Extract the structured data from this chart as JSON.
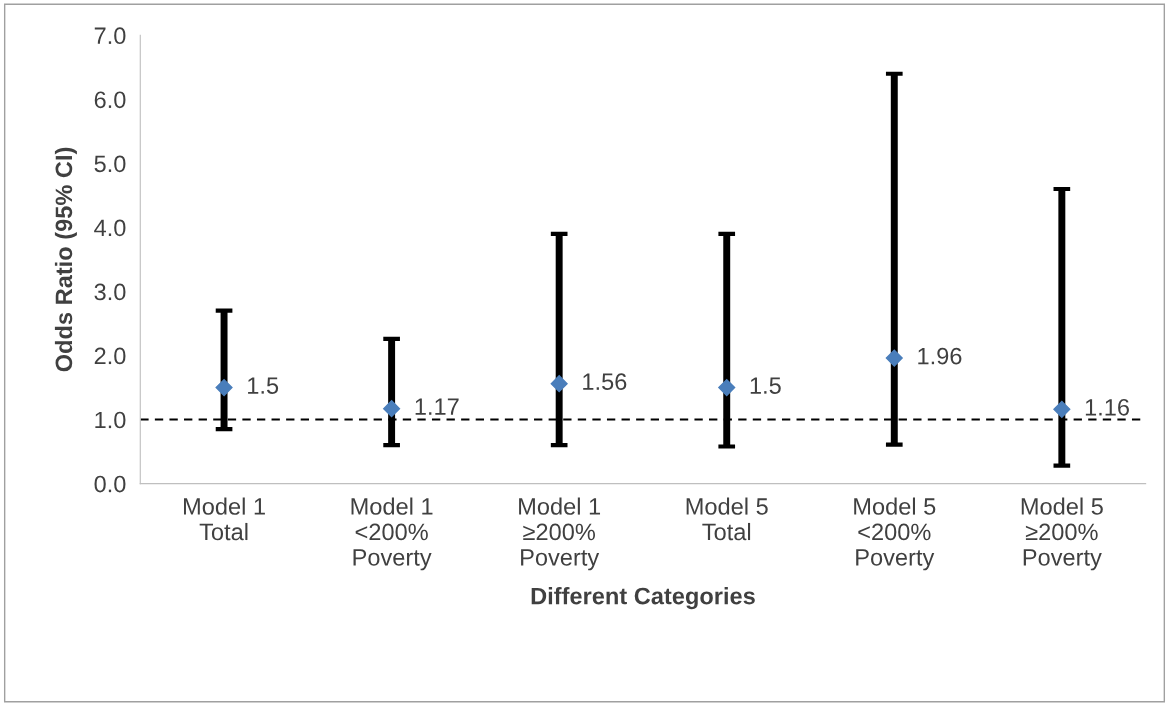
{
  "chart_data": {
    "type": "scatter",
    "xlabel": "Different Categories",
    "ylabel": "Odds Ratio (95% CI)",
    "categories": [
      "Model 1\nTotal",
      "Model 1\n<200%\nPoverty",
      "Model 1\n≥200%\nPoverty",
      "Model 5\nTotal",
      "Model 5\n<200%\nPoverty",
      "Model 5\n≥200%\nPoverty"
    ],
    "series": [
      {
        "color": "#4a7ebb",
        "values": [
          1.5,
          1.17,
          1.56,
          1.5,
          1.96,
          1.16
        ],
        "errors": [
          [
            0.85,
            2.7
          ],
          [
            0.6,
            2.26
          ],
          [
            0.6,
            3.9
          ],
          [
            0.58,
            3.9
          ],
          [
            0.61,
            6.4
          ],
          [
            0.28,
            4.6
          ]
        ]
      }
    ],
    "data_labels": true,
    "marker": "diamond",
    "ylim": [
      0,
      7
    ],
    "yticks": [
      {
        "value": 0,
        "label": "0.0"
      },
      {
        "value": 1,
        "label": "1.0"
      },
      {
        "value": 2,
        "label": "2.0"
      },
      {
        "value": 3,
        "label": "3.0"
      },
      {
        "value": 4,
        "label": "4.0"
      },
      {
        "value": 5,
        "label": "5.0"
      },
      {
        "value": 6,
        "label": "6.0"
      },
      {
        "value": 7,
        "label": "7.0"
      }
    ],
    "ref_lines": [
      {
        "axis": "y",
        "value": 1,
        "color": "#000000",
        "line_style": "dashed"
      }
    ],
    "grid": false
  }
}
